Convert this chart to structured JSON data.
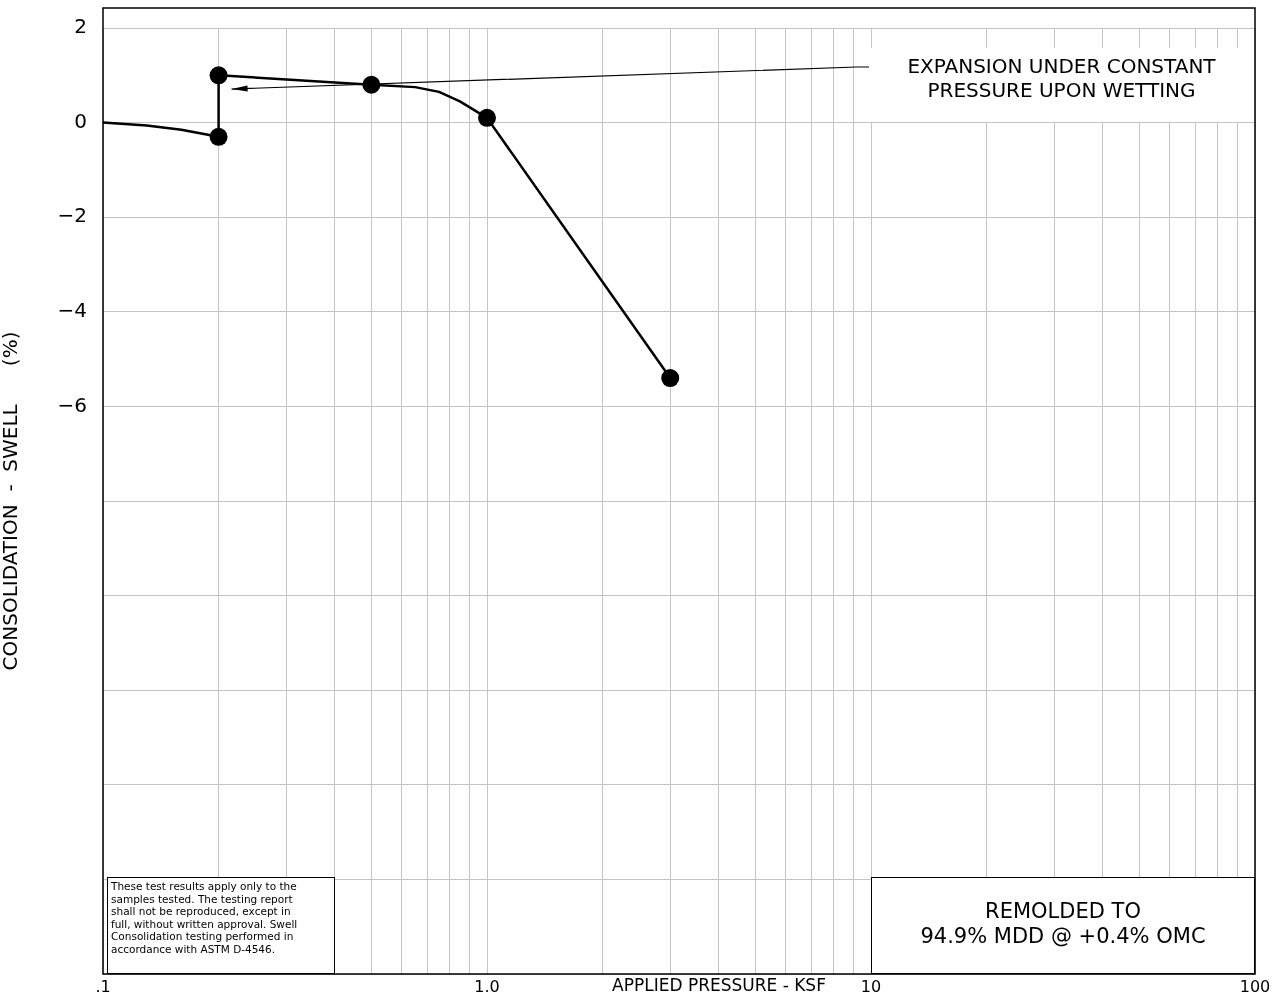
{
  "chart_data": {
    "type": "line",
    "xlabel": "APPLIED PRESSURE - KSF",
    "ylabel": "CONSOLIDATION  -  SWELL      (%)",
    "log": "x",
    "xlim": [
      0.1,
      100
    ],
    "ylim": [
      -18,
      2
    ],
    "xticks": [
      {
        "value": 0.1,
        "label": ".1"
      },
      {
        "value": 0.2,
        "label": null
      },
      {
        "value": 0.3,
        "label": null
      },
      {
        "value": 0.4,
        "label": null
      },
      {
        "value": 0.5,
        "label": null
      },
      {
        "value": 0.6,
        "label": null
      },
      {
        "value": 0.7,
        "label": null
      },
      {
        "value": 0.8,
        "label": null
      },
      {
        "value": 0.9,
        "label": null
      },
      {
        "value": 1,
        "label": "1.0"
      },
      {
        "value": 2,
        "label": null
      },
      {
        "value": 3,
        "label": null
      },
      {
        "value": 4,
        "label": null
      },
      {
        "value": 5,
        "label": null
      },
      {
        "value": 6,
        "label": null
      },
      {
        "value": 7,
        "label": null
      },
      {
        "value": 8,
        "label": null
      },
      {
        "value": 9,
        "label": null
      },
      10,
      {
        "value": 20,
        "label": null
      },
      {
        "value": 30,
        "label": null
      },
      {
        "value": 40,
        "label": null
      },
      {
        "value": 50,
        "label": null
      },
      {
        "value": 60,
        "label": null
      },
      {
        "value": 70,
        "label": null
      },
      {
        "value": 80,
        "label": null
      },
      {
        "value": 90,
        "label": null
      },
      100
    ],
    "yticks": [
      2,
      0,
      -2,
      -4,
      -6,
      {
        "value": -8,
        "label": null
      },
      {
        "value": -10,
        "label": null
      },
      {
        "value": -12,
        "label": null
      },
      {
        "value": -14,
        "label": null
      },
      {
        "value": -16,
        "label": null
      },
      {
        "value": -18,
        "label": null
      }
    ],
    "grid": true,
    "series": [
      {
        "type": "line",
        "color": "#000000",
        "marker": "none",
        "x": [
          0.1,
          0.13,
          0.16,
          0.2,
          0.2,
          0.5,
          0.65,
          0.75,
          0.85,
          1.0,
          3
        ],
        "values": [
          0,
          -0.06,
          -0.15,
          -0.3,
          1.0,
          0.8,
          0.75,
          0.65,
          0.45,
          0.1,
          -5.4
        ]
      },
      {
        "type": "scatter",
        "color": "#000000",
        "marker": "circle",
        "x": [
          0.2,
          0.2,
          0.5,
          1.0,
          3
        ],
        "values": [
          -0.3,
          1.0,
          0.8,
          0.1,
          -5.4
        ]
      }
    ],
    "annotations": [
      "EXPANSION UNDER CONSTANT\nPRESSURE UPON WETTING",
      "REMOLDED TO\n94.9% MDD @ +0.4% OMC",
      "These test results apply only to the\nsamples tested. The testing report\nshall not be reproduced, except in\nfull, without written approval. Swell\nConsolidation testing performed in\naccordance with ASTM D-4546."
    ]
  }
}
